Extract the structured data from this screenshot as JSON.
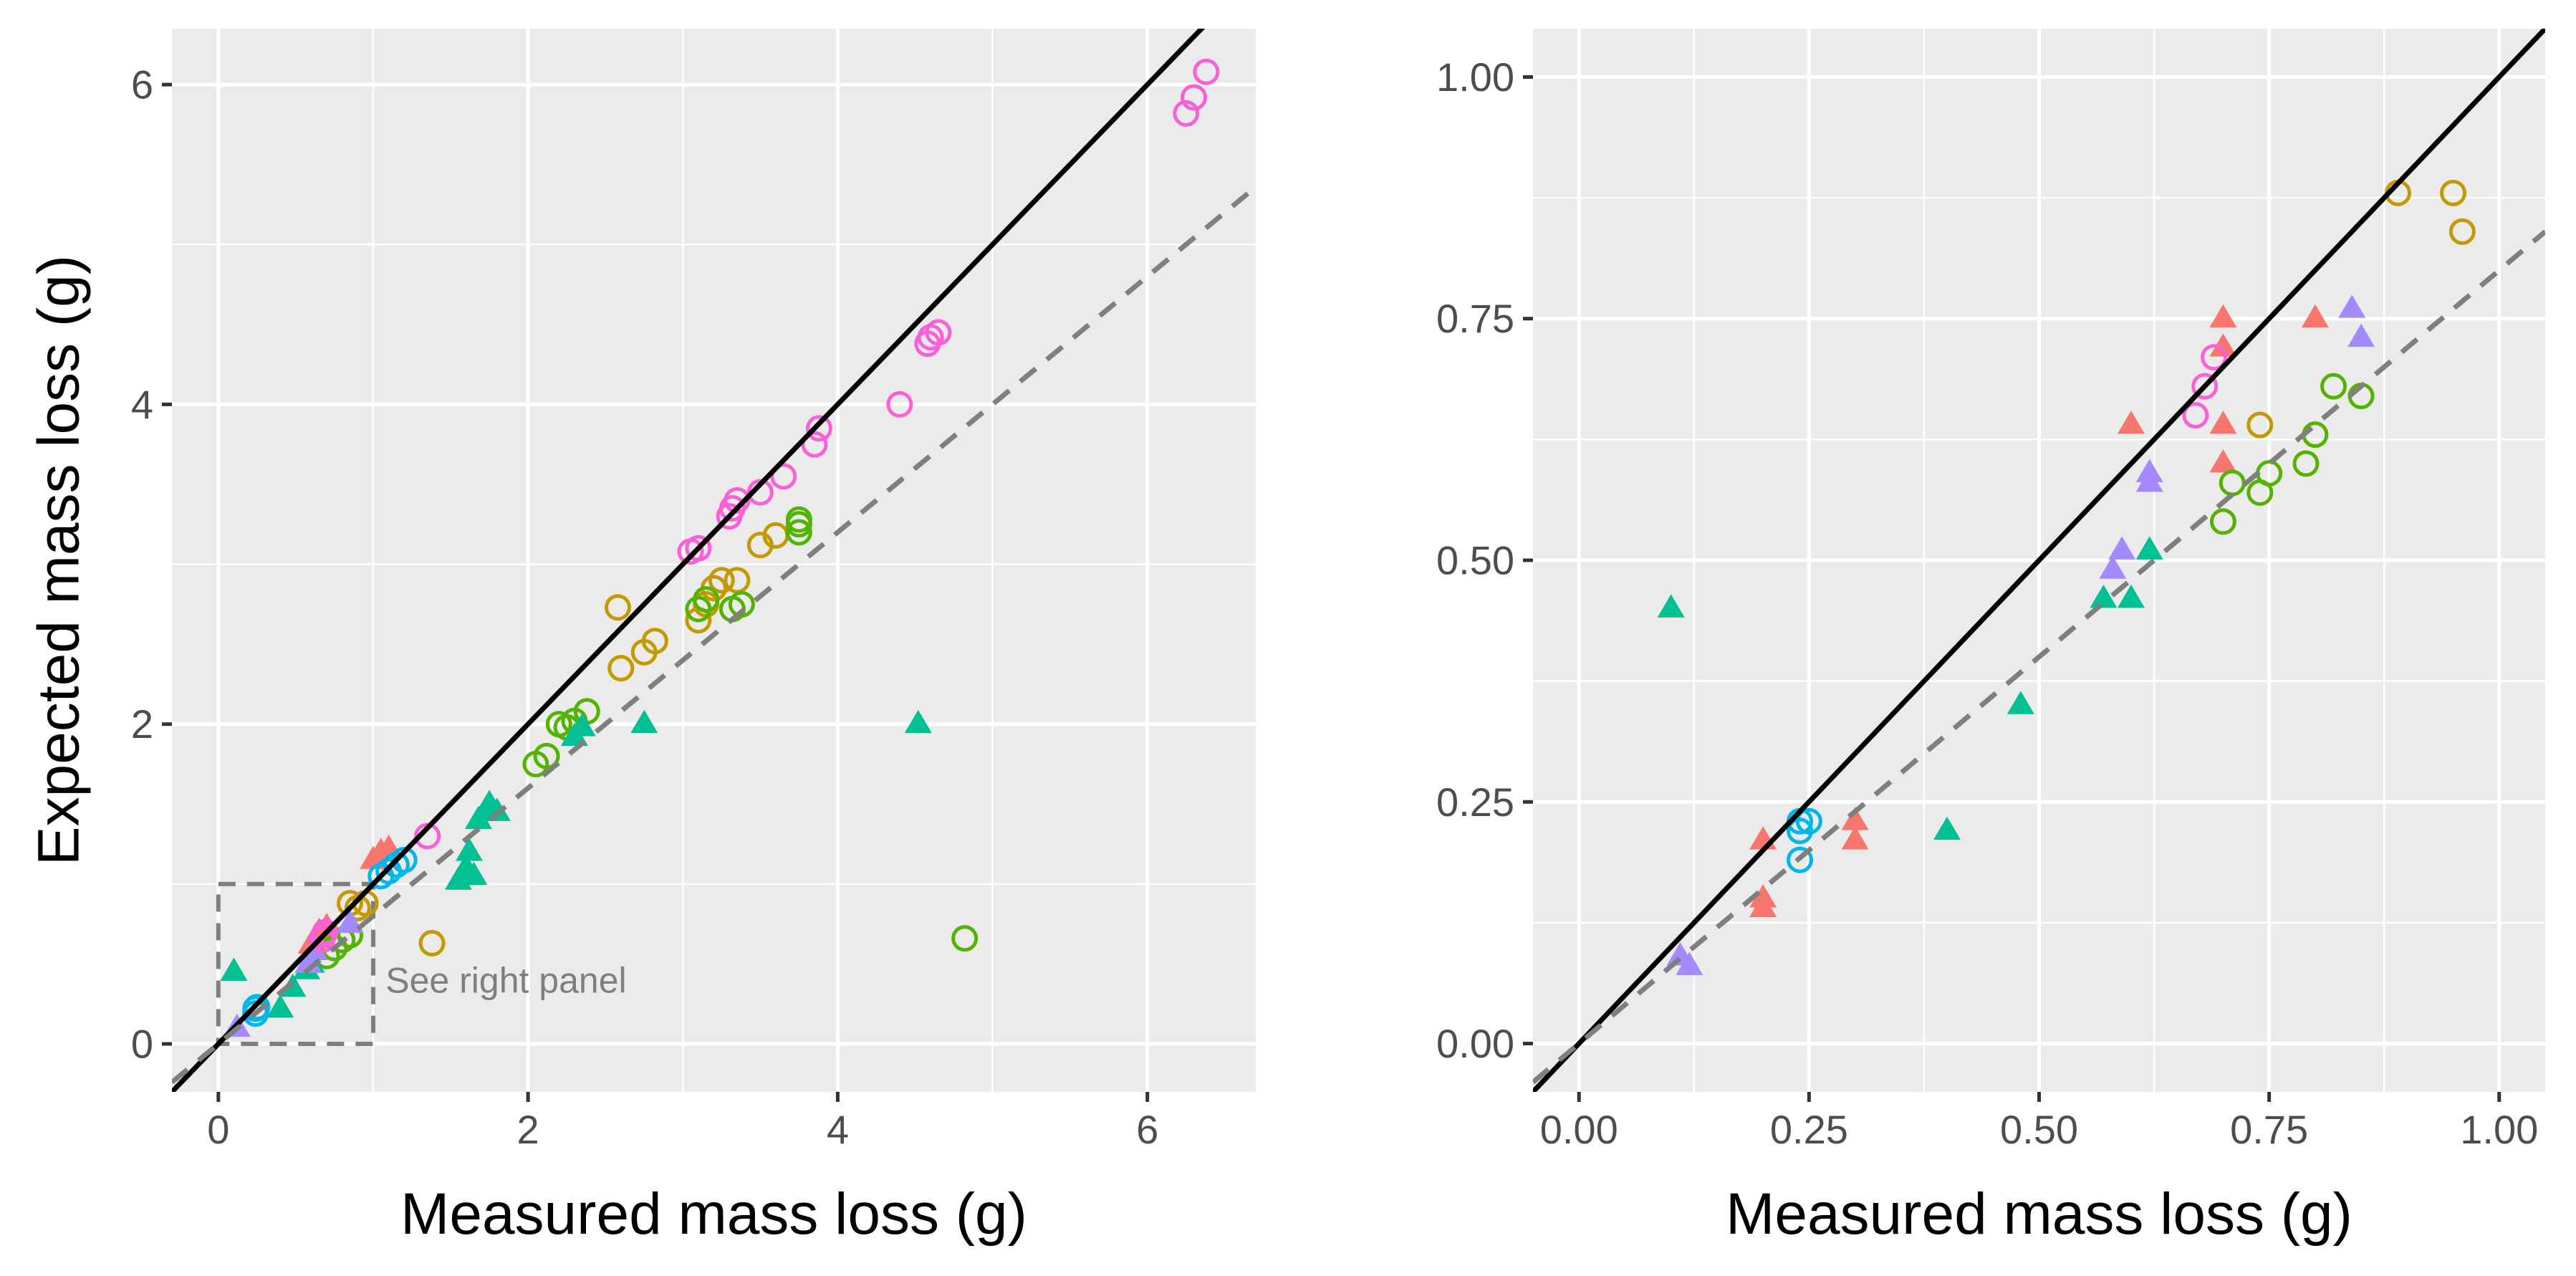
{
  "colors": {
    "panel_bg": "#ebebeb",
    "grid": "#ffffff",
    "identity_line": "#000000",
    "fit_line": "#7f7f7f",
    "tick": "#333333",
    "red": "#F8766D",
    "gold": "#C49A00",
    "green": "#53B400",
    "teal": "#00C094",
    "blue": "#00B6EB",
    "purple": "#A58AFF",
    "pink": "#FB61D7"
  },
  "chart_data": [
    {
      "type": "scatter",
      "panel": "left",
      "xlabel": "Measured mass loss (g)",
      "ylabel": "Expected mass loss (g)",
      "xlim": [
        -0.3,
        6.7
      ],
      "ylim": [
        -0.3,
        6.35
      ],
      "xticks": [
        0,
        2,
        4,
        6
      ],
      "yticks": [
        0,
        2,
        4,
        6
      ],
      "xtick_labels": [
        "0",
        "2",
        "4",
        "6"
      ],
      "ytick_labels": [
        "0",
        "2",
        "4",
        "6"
      ],
      "grid": true,
      "reference_lines": [
        {
          "name": "identity",
          "style": "solid",
          "slope": 1,
          "intercept": 0
        },
        {
          "name": "fit",
          "style": "dashed",
          "slope": 0.8,
          "intercept": 0
        }
      ],
      "zoom_box": {
        "x0": 0,
        "x1": 1,
        "y0": 0,
        "y1": 1
      },
      "annotation": {
        "text": "See right panel",
        "x": 1.08,
        "y": 0.38
      },
      "series": [
        {
          "name": "red",
          "color_key": "red",
          "shape": "triangle",
          "points": [
            [
              0.6,
              0.62
            ],
            [
              0.65,
              0.7
            ],
            [
              0.7,
              0.73
            ],
            [
              1.0,
              1.15
            ],
            [
              1.05,
              1.2
            ],
            [
              1.1,
              1.22
            ]
          ]
        },
        {
          "name": "gold",
          "color_key": "gold",
          "shape": "circle",
          "points": [
            [
              0.85,
              0.88
            ],
            [
              0.9,
              0.85
            ],
            [
              0.95,
              0.88
            ],
            [
              1.38,
              0.63
            ],
            [
              2.58,
              2.73
            ],
            [
              2.6,
              2.35
            ],
            [
              2.75,
              2.45
            ],
            [
              2.82,
              2.52
            ],
            [
              3.1,
              2.65
            ],
            [
              3.15,
              2.75
            ],
            [
              3.2,
              2.85
            ],
            [
              3.25,
              2.9
            ],
            [
              3.35,
              2.9
            ],
            [
              3.5,
              3.12
            ],
            [
              3.6,
              3.18
            ]
          ]
        },
        {
          "name": "green",
          "color_key": "green",
          "shape": "circle",
          "points": [
            [
              0.7,
              0.55
            ],
            [
              0.75,
              0.6
            ],
            [
              0.8,
              0.65
            ],
            [
              0.85,
              0.68
            ],
            [
              2.05,
              1.75
            ],
            [
              2.12,
              1.8
            ],
            [
              2.2,
              2.0
            ],
            [
              2.25,
              1.98
            ],
            [
              2.3,
              2.02
            ],
            [
              2.38,
              2.08
            ],
            [
              3.1,
              2.72
            ],
            [
              3.15,
              2.78
            ],
            [
              3.32,
              2.72
            ],
            [
              3.38,
              2.75
            ],
            [
              3.75,
              3.2
            ],
            [
              3.75,
              3.25
            ],
            [
              3.75,
              3.28
            ],
            [
              4.82,
              0.66
            ]
          ]
        },
        {
          "name": "teal",
          "color_key": "teal",
          "shape": "triangle",
          "points": [
            [
              0.1,
              0.45
            ],
            [
              0.4,
              0.22
            ],
            [
              0.48,
              0.35
            ],
            [
              0.57,
              0.46
            ],
            [
              0.6,
              0.5
            ],
            [
              1.55,
              1.02
            ],
            [
              1.6,
              1.1
            ],
            [
              1.62,
              1.2
            ],
            [
              1.65,
              1.05
            ],
            [
              1.68,
              1.4
            ],
            [
              1.72,
              1.45
            ],
            [
              1.75,
              1.5
            ],
            [
              1.8,
              1.45
            ],
            [
              2.3,
              1.92
            ],
            [
              2.35,
              1.98
            ],
            [
              2.75,
              2.0
            ],
            [
              4.52,
              2.0
            ]
          ]
        },
        {
          "name": "blue",
          "color_key": "blue",
          "shape": "circle",
          "points": [
            [
              0.24,
              0.19
            ],
            [
              0.24,
              0.22
            ],
            [
              0.25,
              0.23
            ],
            [
              1.05,
              1.05
            ],
            [
              1.1,
              1.08
            ],
            [
              1.15,
              1.12
            ],
            [
              1.2,
              1.15
            ]
          ]
        },
        {
          "name": "purple",
          "color_key": "purple",
          "shape": "triangle",
          "points": [
            [
              0.12,
              0.1
            ],
            [
              0.58,
              0.5
            ],
            [
              0.62,
              0.58
            ],
            [
              0.85,
              0.75
            ]
          ]
        },
        {
          "name": "pink",
          "color_key": "pink",
          "shape": "circle",
          "points": [
            [
              0.67,
              0.65
            ],
            [
              0.68,
              0.68
            ],
            [
              0.69,
              0.7
            ],
            [
              1.35,
              1.3
            ],
            [
              3.05,
              3.08
            ],
            [
              3.1,
              3.1
            ],
            [
              3.3,
              3.3
            ],
            [
              3.32,
              3.35
            ],
            [
              3.35,
              3.4
            ],
            [
              3.5,
              3.45
            ],
            [
              3.65,
              3.55
            ],
            [
              3.85,
              3.75
            ],
            [
              3.88,
              3.85
            ],
            [
              4.4,
              4.0
            ],
            [
              4.58,
              4.38
            ],
            [
              4.6,
              4.42
            ],
            [
              4.65,
              4.45
            ],
            [
              6.25,
              5.82
            ],
            [
              6.3,
              5.92
            ],
            [
              6.38,
              6.08
            ]
          ]
        }
      ]
    },
    {
      "type": "scatter",
      "panel": "right",
      "xlabel": "Measured mass loss (g)",
      "ylabel": "",
      "xlim": [
        -0.05,
        1.05
      ],
      "ylim": [
        -0.05,
        1.05
      ],
      "xticks": [
        0,
        0.25,
        0.5,
        0.75,
        1.0
      ],
      "yticks": [
        0,
        0.25,
        0.5,
        0.75,
        1.0
      ],
      "xtick_labels": [
        "0.00",
        "0.25",
        "0.50",
        "0.75",
        "1.00"
      ],
      "ytick_labels": [
        "0.00",
        "0.25",
        "0.50",
        "0.75",
        "1.00"
      ],
      "grid": true,
      "reference_lines": [
        {
          "name": "identity",
          "style": "solid",
          "slope": 1,
          "intercept": 0
        },
        {
          "name": "fit",
          "style": "dashed",
          "slope": 0.8,
          "intercept": 0
        }
      ],
      "series": [
        {
          "name": "red",
          "color_key": "red",
          "shape": "triangle",
          "points": [
            [
              0.2,
              0.21
            ],
            [
              0.2,
              0.15
            ],
            [
              0.2,
              0.14
            ],
            [
              0.3,
              0.23
            ],
            [
              0.3,
              0.21
            ],
            [
              0.6,
              0.64
            ],
            [
              0.7,
              0.75
            ],
            [
              0.7,
              0.72
            ],
            [
              0.7,
              0.64
            ],
            [
              0.7,
              0.6
            ],
            [
              0.8,
              0.75
            ]
          ]
        },
        {
          "name": "gold",
          "color_key": "gold",
          "shape": "circle",
          "points": [
            [
              0.74,
              0.64
            ],
            [
              0.89,
              0.88
            ],
            [
              0.95,
              0.88
            ],
            [
              0.96,
              0.84
            ]
          ]
        },
        {
          "name": "green",
          "color_key": "green",
          "shape": "circle",
          "points": [
            [
              0.7,
              0.54
            ],
            [
              0.71,
              0.58
            ],
            [
              0.74,
              0.57
            ],
            [
              0.75,
              0.59
            ],
            [
              0.79,
              0.6
            ],
            [
              0.8,
              0.63
            ],
            [
              0.82,
              0.68
            ],
            [
              0.85,
              0.67
            ]
          ]
        },
        {
          "name": "teal",
          "color_key": "teal",
          "shape": "triangle",
          "points": [
            [
              0.1,
              0.45
            ],
            [
              0.4,
              0.22
            ],
            [
              0.48,
              0.35
            ],
            [
              0.57,
              0.46
            ],
            [
              0.6,
              0.46
            ],
            [
              0.62,
              0.51
            ]
          ]
        },
        {
          "name": "blue",
          "color_key": "blue",
          "shape": "circle",
          "points": [
            [
              0.24,
              0.19
            ],
            [
              0.24,
              0.22
            ],
            [
              0.25,
              0.23
            ],
            [
              0.24,
              0.23
            ]
          ]
        },
        {
          "name": "purple",
          "color_key": "purple",
          "shape": "triangle",
          "points": [
            [
              0.11,
              0.09
            ],
            [
              0.12,
              0.08
            ],
            [
              0.58,
              0.49
            ],
            [
              0.59,
              0.51
            ],
            [
              0.62,
              0.59
            ],
            [
              0.62,
              0.58
            ],
            [
              0.84,
              0.76
            ],
            [
              0.85,
              0.73
            ]
          ]
        },
        {
          "name": "pink",
          "color_key": "pink",
          "shape": "circle",
          "points": [
            [
              0.67,
              0.65
            ],
            [
              0.68,
              0.68
            ],
            [
              0.69,
              0.71
            ]
          ]
        }
      ]
    }
  ]
}
